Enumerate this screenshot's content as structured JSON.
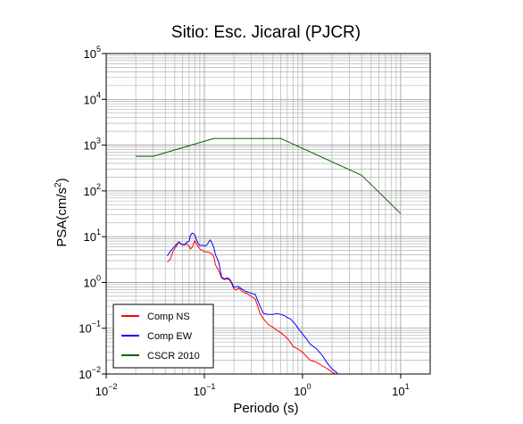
{
  "chart_data": {
    "type": "line",
    "title": "Sitio: Esc. Jicaral (PJCR)",
    "xlabel": "Periodo (s)",
    "ylabel_main": "PSA(cm/s",
    "ylabel_sup": "2",
    "ylabel_close": ")",
    "x_scale": "log",
    "y_scale": "log",
    "xlim": [
      0.01,
      20
    ],
    "ylim": [
      0.01,
      100000
    ],
    "grid": true,
    "legend_position": "bottom-left",
    "x_ticks": [
      {
        "base": "10",
        "exp": "−2",
        "value": 0.01
      },
      {
        "base": "10",
        "exp": "−1",
        "value": 0.1
      },
      {
        "base": "10",
        "exp": "0",
        "value": 1
      },
      {
        "base": "10",
        "exp": "1",
        "value": 10
      }
    ],
    "y_ticks": [
      {
        "base": "10",
        "exp": "−2",
        "value": 0.01
      },
      {
        "base": "10",
        "exp": "−1",
        "value": 0.1
      },
      {
        "base": "10",
        "exp": "0",
        "value": 1
      },
      {
        "base": "10",
        "exp": "1",
        "value": 10
      },
      {
        "base": "10",
        "exp": "2",
        "value": 100
      },
      {
        "base": "10",
        "exp": "3",
        "value": 1000
      },
      {
        "base": "10",
        "exp": "4",
        "value": 10000
      },
      {
        "base": "10",
        "exp": "5",
        "value": 100000
      }
    ],
    "series": [
      {
        "name": "Comp NS",
        "color": "#ff0000",
        "points": [
          [
            0.042,
            2.8
          ],
          [
            0.045,
            3.2
          ],
          [
            0.048,
            4.8
          ],
          [
            0.052,
            6.2
          ],
          [
            0.055,
            7.8
          ],
          [
            0.058,
            6.8
          ],
          [
            0.062,
            6.6
          ],
          [
            0.066,
            6.9
          ],
          [
            0.07,
            6.2
          ],
          [
            0.072,
            5.4
          ],
          [
            0.075,
            5.8
          ],
          [
            0.078,
            7.2
          ],
          [
            0.08,
            8.2
          ],
          [
            0.083,
            7.0
          ],
          [
            0.087,
            6.0
          ],
          [
            0.09,
            5.4
          ],
          [
            0.095,
            5.0
          ],
          [
            0.1,
            4.7
          ],
          [
            0.11,
            4.6
          ],
          [
            0.12,
            4.2
          ],
          [
            0.125,
            3.6
          ],
          [
            0.13,
            2.4
          ],
          [
            0.14,
            1.8
          ],
          [
            0.15,
            1.25
          ],
          [
            0.16,
            1.15
          ],
          [
            0.17,
            1.2
          ],
          [
            0.18,
            1.15
          ],
          [
            0.19,
            0.95
          ],
          [
            0.2,
            0.72
          ],
          [
            0.21,
            0.68
          ],
          [
            0.22,
            0.75
          ],
          [
            0.23,
            0.72
          ],
          [
            0.25,
            0.6
          ],
          [
            0.27,
            0.58
          ],
          [
            0.3,
            0.5
          ],
          [
            0.33,
            0.43
          ],
          [
            0.35,
            0.3
          ],
          [
            0.37,
            0.21
          ],
          [
            0.4,
            0.16
          ],
          [
            0.45,
            0.12
          ],
          [
            0.5,
            0.105
          ],
          [
            0.55,
            0.09
          ],
          [
            0.6,
            0.08
          ],
          [
            0.65,
            0.07
          ],
          [
            0.7,
            0.06
          ],
          [
            0.75,
            0.05
          ],
          [
            0.8,
            0.04
          ],
          [
            0.9,
            0.035
          ],
          [
            1.0,
            0.03
          ],
          [
            1.1,
            0.024
          ],
          [
            1.2,
            0.02
          ],
          [
            1.4,
            0.018
          ],
          [
            1.6,
            0.015
          ],
          [
            1.8,
            0.013
          ],
          [
            2.0,
            0.011
          ],
          [
            2.2,
            0.01
          ]
        ]
      },
      {
        "name": "Comp EW",
        "color": "#0000ff",
        "points": [
          [
            0.042,
            3.8
          ],
          [
            0.045,
            4.8
          ],
          [
            0.048,
            5.6
          ],
          [
            0.052,
            6.8
          ],
          [
            0.055,
            7.5
          ],
          [
            0.058,
            7.0
          ],
          [
            0.062,
            6.5
          ],
          [
            0.066,
            7.5
          ],
          [
            0.07,
            8.0
          ],
          [
            0.072,
            10.5
          ],
          [
            0.075,
            12.0
          ],
          [
            0.078,
            11.5
          ],
          [
            0.08,
            10.8
          ],
          [
            0.083,
            8.6
          ],
          [
            0.087,
            7.0
          ],
          [
            0.09,
            6.4
          ],
          [
            0.095,
            6.5
          ],
          [
            0.1,
            6.3
          ],
          [
            0.105,
            6.4
          ],
          [
            0.11,
            7.5
          ],
          [
            0.115,
            8.5
          ],
          [
            0.12,
            7.2
          ],
          [
            0.125,
            5.8
          ],
          [
            0.13,
            4.0
          ],
          [
            0.14,
            2.8
          ],
          [
            0.15,
            1.3
          ],
          [
            0.16,
            1.2
          ],
          [
            0.17,
            1.25
          ],
          [
            0.18,
            1.2
          ],
          [
            0.19,
            1.0
          ],
          [
            0.2,
            0.78
          ],
          [
            0.22,
            0.82
          ],
          [
            0.24,
            0.72
          ],
          [
            0.26,
            0.64
          ],
          [
            0.28,
            0.62
          ],
          [
            0.3,
            0.58
          ],
          [
            0.33,
            0.55
          ],
          [
            0.35,
            0.4
          ],
          [
            0.37,
            0.3
          ],
          [
            0.4,
            0.21
          ],
          [
            0.45,
            0.2
          ],
          [
            0.5,
            0.2
          ],
          [
            0.55,
            0.21
          ],
          [
            0.6,
            0.2
          ],
          [
            0.65,
            0.19
          ],
          [
            0.7,
            0.17
          ],
          [
            0.75,
            0.16
          ],
          [
            0.8,
            0.14
          ],
          [
            0.85,
            0.12
          ],
          [
            0.9,
            0.1
          ],
          [
            1.0,
            0.075
          ],
          [
            1.1,
            0.058
          ],
          [
            1.2,
            0.045
          ],
          [
            1.4,
            0.035
          ],
          [
            1.6,
            0.025
          ],
          [
            1.8,
            0.017
          ],
          [
            2.0,
            0.013
          ],
          [
            2.2,
            0.011
          ],
          [
            2.3,
            0.01
          ]
        ]
      },
      {
        "name": "CSCR 2010",
        "color": "#006400",
        "points": [
          [
            0.02,
            570
          ],
          [
            0.03,
            570
          ],
          [
            0.125,
            1400
          ],
          [
            0.6,
            1400
          ],
          [
            4.0,
            220
          ],
          [
            10.0,
            32
          ]
        ]
      }
    ]
  }
}
